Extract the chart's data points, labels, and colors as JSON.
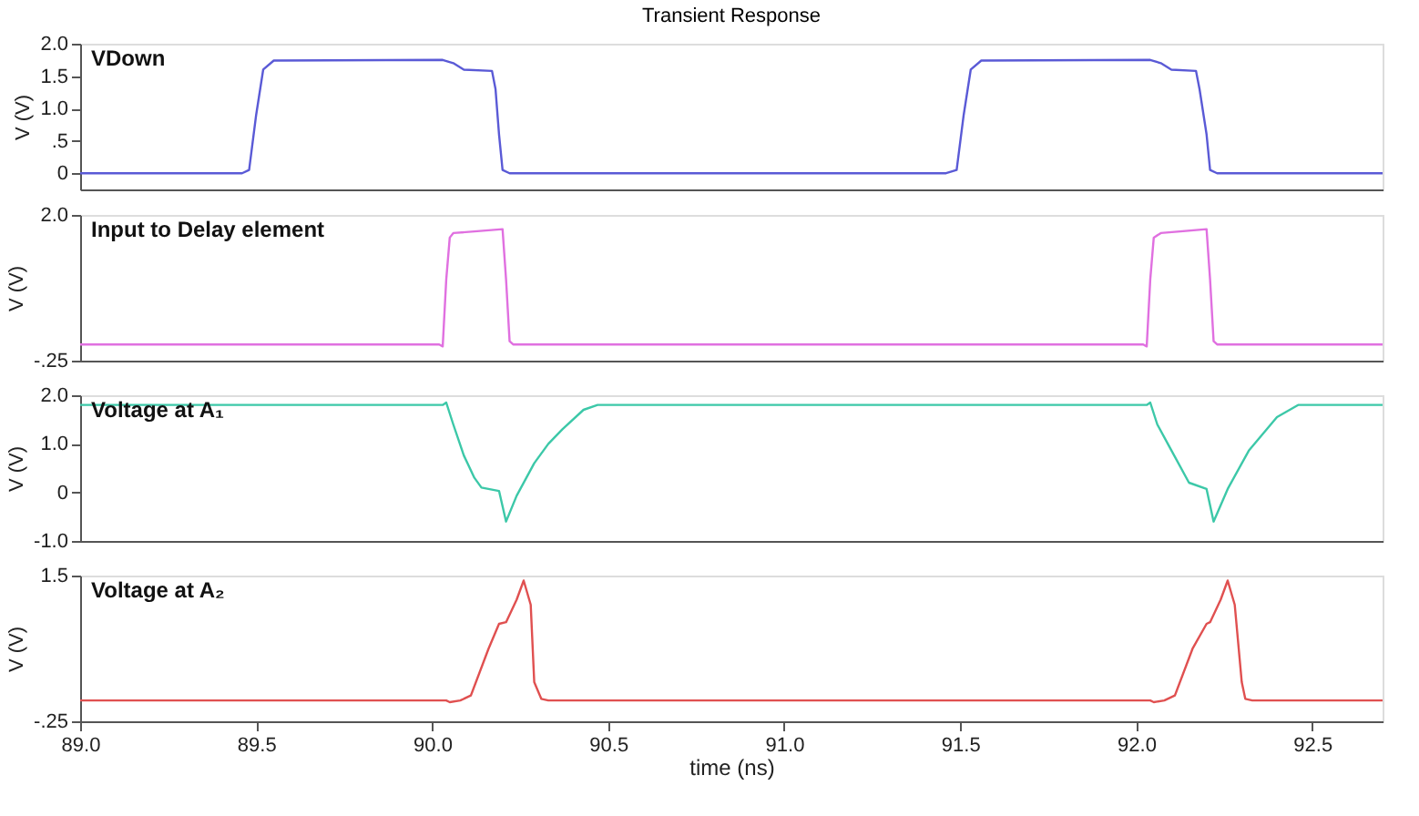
{
  "chart_data": [
    {
      "type": "line",
      "title": "Transient Response",
      "ylabel": "V (V)",
      "xlim": [
        89.0,
        92.7
      ],
      "ylim": [
        -0.25,
        2.0
      ],
      "yticks": [
        0,
        {
          "value": 0.5,
          "label": ".5"
        },
        {
          "value": 1.0,
          "label": "1.0"
        },
        {
          "value": 1.5,
          "label": "1.5"
        },
        {
          "value": 2.0,
          "label": "2.0"
        }
      ],
      "tick_labels": "y",
      "grid": false,
      "line_style": "solid",
      "x": [
        89.0,
        89.46,
        89.48,
        89.5,
        89.52,
        89.55,
        90.03,
        90.06,
        90.09,
        90.17,
        90.18,
        90.19,
        90.2,
        90.22,
        91.46,
        91.49,
        91.51,
        91.53,
        91.56,
        92.04,
        92.07,
        92.1,
        92.17,
        92.18,
        92.2,
        92.21,
        92.23,
        92.7
      ],
      "series": [
        {
          "name": "VDown",
          "color": "#5a5ad6",
          "values": [
            0,
            0,
            0.05,
            0.9,
            1.6,
            1.74,
            1.75,
            1.7,
            1.6,
            1.58,
            1.3,
            0.6,
            0.05,
            0,
            0,
            0.05,
            0.9,
            1.6,
            1.74,
            1.75,
            1.7,
            1.6,
            1.58,
            1.3,
            0.6,
            0.05,
            0,
            0
          ]
        }
      ]
    },
    {
      "type": "line",
      "ylabel": "V (V)",
      "xlim": [
        89.0,
        92.7
      ],
      "ylim": [
        -0.25,
        2.0
      ],
      "yticks": [
        {
          "value": -0.25,
          "label": "-.25"
        },
        {
          "value": 2.0,
          "label": "2.0"
        }
      ],
      "tick_labels": "y",
      "grid": false,
      "line_style": "solid",
      "x": [
        89.0,
        90.02,
        90.03,
        90.04,
        90.05,
        90.06,
        90.2,
        90.21,
        90.22,
        90.23,
        92.02,
        92.03,
        92.04,
        92.05,
        92.07,
        92.2,
        92.21,
        92.22,
        92.23,
        92.7
      ],
      "series": [
        {
          "name": "Input to Delay element",
          "color": "#e070e0",
          "values": [
            0,
            0,
            -0.03,
            1.0,
            1.65,
            1.72,
            1.78,
            1.0,
            0.05,
            0,
            0,
            -0.03,
            1.0,
            1.65,
            1.72,
            1.78,
            1.0,
            0.05,
            0,
            0
          ]
        }
      ]
    },
    {
      "type": "line",
      "ylabel": "V (V)",
      "xlim": [
        89.0,
        92.7
      ],
      "ylim": [
        -1.0,
        2.0
      ],
      "yticks": [
        {
          "value": 2.0,
          "label": "2.0"
        },
        {
          "value": 1.0,
          "label": "1.0"
        },
        0,
        {
          "value": -1.0,
          "label": "-1.0"
        }
      ],
      "tick_labels": "y",
      "grid": false,
      "line_style": "solid",
      "x": [
        89.0,
        90.03,
        90.04,
        90.06,
        90.09,
        90.12,
        90.14,
        90.19,
        90.21,
        90.24,
        90.29,
        90.33,
        90.37,
        90.43,
        90.47,
        92.03,
        92.04,
        92.06,
        92.09,
        92.15,
        92.2,
        92.22,
        92.26,
        92.32,
        92.4,
        92.46,
        92.7
      ],
      "series": [
        {
          "name": "Voltage at A₁",
          "color": "#3cc8a8",
          "values": [
            1.8,
            1.8,
            1.85,
            1.4,
            0.76,
            0.3,
            0.1,
            0.03,
            -0.6,
            -0.07,
            0.6,
            1.0,
            1.3,
            1.7,
            1.8,
            1.8,
            1.85,
            1.4,
            1.0,
            0.2,
            0.07,
            -0.6,
            0.07,
            0.86,
            1.55,
            1.8,
            1.8
          ]
        }
      ]
    },
    {
      "type": "line",
      "ylabel": "V (V)",
      "xlabel": "time (ns)",
      "xlim": [
        89.0,
        92.7
      ],
      "ylim": [
        -0.25,
        1.5
      ],
      "yticks": [
        {
          "value": 1.5,
          "label": "1.5"
        },
        {
          "value": -0.25,
          "label": "-.25"
        }
      ],
      "xticks": [
        {
          "value": 89.0,
          "label": "89.0"
        },
        89.5,
        {
          "value": 90.0,
          "label": "90.0"
        },
        90.5,
        {
          "value": 91.0,
          "label": "91.0"
        },
        91.5,
        {
          "value": 92.0,
          "label": "92.0"
        },
        92.5
      ],
      "grid": false,
      "line_style": "solid",
      "x": [
        89.0,
        90.04,
        90.05,
        90.08,
        90.11,
        90.16,
        90.19,
        90.21,
        90.24,
        90.26,
        90.28,
        90.29,
        90.31,
        90.33,
        92.04,
        92.05,
        92.08,
        92.11,
        92.16,
        92.2,
        92.21,
        92.24,
        92.26,
        92.28,
        92.3,
        92.31,
        92.33,
        92.7
      ],
      "series": [
        {
          "name": "Voltage at A₂",
          "color": "#e05050",
          "values": [
            0,
            0,
            -0.02,
            0,
            0.06,
            0.62,
            0.92,
            0.94,
            1.21,
            1.44,
            1.15,
            0.22,
            0.02,
            0,
            0,
            -0.02,
            0,
            0.06,
            0.62,
            0.92,
            0.94,
            1.21,
            1.44,
            1.15,
            0.22,
            0.02,
            0,
            0
          ]
        }
      ]
    }
  ]
}
